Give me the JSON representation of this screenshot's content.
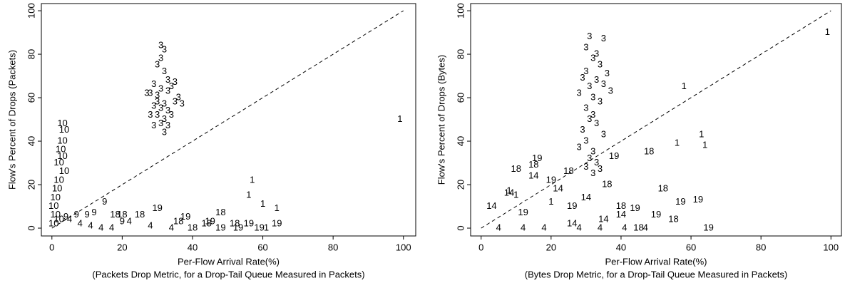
{
  "chart_data": [
    {
      "type": "scatter",
      "xlabel": "Per-Flow Arrival Rate(%)",
      "caption": "(Packets Drop Metric, for a Drop-Tail Queue Measured in Packets)",
      "ylabel": "Flow's Percent of Drops (Packets)",
      "xlim": [
        -3,
        103.5
      ],
      "ylim": [
        -3.6,
        103.3
      ],
      "xticks": [
        0,
        20,
        40,
        60,
        80,
        100
      ],
      "yticks": [
        0,
        20,
        40,
        60,
        80,
        100
      ],
      "diagonal": true,
      "series": [
        {
          "name": "3",
          "color": "#000000",
          "x": [
            31,
            32,
            31,
            30,
            32,
            33,
            29,
            31,
            28,
            30,
            34,
            35,
            33,
            36,
            27,
            30,
            32,
            29,
            31,
            33,
            35,
            37,
            30,
            32,
            34,
            28,
            31,
            33,
            29,
            32
          ],
          "values": [
            84,
            82,
            78,
            75,
            72,
            68,
            66,
            64,
            62,
            61,
            65,
            67,
            63,
            60,
            62,
            58,
            57,
            56,
            55,
            54,
            58,
            57,
            52,
            50,
            52,
            52,
            48,
            47,
            47,
            44
          ]
        },
        {
          "name": "10",
          "color": "#000000",
          "x": [
            3,
            3.5,
            3,
            2.5,
            3,
            2,
            3.5,
            2,
            1.5,
            1,
            0.5,
            1,
            2,
            0.5
          ],
          "values": [
            48,
            45,
            40,
            36,
            33,
            30,
            26,
            22,
            18,
            14,
            10,
            6,
            4,
            2
          ]
        },
        {
          "name": "1",
          "color": "#000000",
          "x": [
            99,
            57,
            56,
            60,
            64,
            61
          ],
          "values": [
            50,
            22,
            15,
            11,
            9,
            0
          ]
        },
        {
          "name": "9",
          "color": "#000000",
          "x": [
            15,
            7,
            10,
            12,
            4,
            20
          ],
          "values": [
            12,
            6,
            6,
            7,
            5,
            3
          ]
        },
        {
          "name": "18",
          "color": "#000000",
          "x": [
            48,
            36,
            20,
            25,
            52,
            18,
            44,
            40
          ],
          "values": [
            7,
            3,
            6,
            6,
            2,
            6,
            2,
            0
          ]
        },
        {
          "name": "19",
          "color": "#000000",
          "x": [
            53,
            59,
            64,
            45,
            38,
            30,
            48,
            56
          ],
          "values": [
            0,
            0,
            2,
            3,
            5,
            9,
            0,
            2
          ]
        },
        {
          "name": "4",
          "color": "#000000",
          "x": [
            8,
            14,
            22,
            28,
            34,
            5,
            11,
            17
          ],
          "values": [
            2,
            0,
            3,
            1,
            0,
            4,
            1,
            0
          ]
        }
      ]
    },
    {
      "type": "scatter",
      "xlabel": "Per-Flow Arrival Rate(%)",
      "caption": "(Bytes Drop Metric, for a Drop-Tail Queue Measured in Packets)",
      "ylabel": "Flow's Percent of Drops (Bytes)",
      "xlim": [
        -3,
        103
      ],
      "ylim": [
        -3.6,
        103.3
      ],
      "xticks": [
        0,
        20,
        40,
        60,
        80,
        100
      ],
      "yticks": [
        0,
        20,
        40,
        60,
        80,
        100
      ],
      "diagonal": true,
      "series": [
        {
          "name": "3",
          "color": "#000000",
          "x": [
            31,
            35,
            30,
            33,
            32,
            34,
            30,
            36,
            29,
            33,
            35,
            31,
            37,
            28,
            32,
            34,
            30,
            32,
            31,
            33,
            29,
            35,
            30,
            28,
            32,
            31,
            33,
            30,
            34,
            32
          ],
          "values": [
            88,
            87,
            83,
            80,
            78,
            75,
            72,
            71,
            69,
            68,
            66,
            65,
            63,
            62,
            60,
            58,
            55,
            52,
            50,
            48,
            45,
            43,
            40,
            37,
            35,
            32,
            30,
            28,
            27,
            25
          ]
        },
        {
          "name": "1",
          "color": "#000000",
          "x": [
            99,
            58,
            63,
            56,
            64,
            10,
            20,
            8
          ],
          "values": [
            90,
            65,
            43,
            39,
            38,
            15,
            12,
            17
          ]
        },
        {
          "name": "18",
          "color": "#000000",
          "x": [
            48,
            52,
            55,
            40,
            15,
            10,
            25,
            45,
            36
          ],
          "values": [
            35,
            18,
            4,
            10,
            29,
            27,
            26,
            0,
            20
          ]
        },
        {
          "name": "19",
          "color": "#000000",
          "x": [
            57,
            62,
            65,
            50,
            16,
            20,
            38,
            44,
            26,
            12
          ],
          "values": [
            12,
            13,
            0,
            6,
            32,
            22,
            33,
            9,
            10,
            7
          ]
        },
        {
          "name": "14",
          "color": "#000000",
          "x": [
            22,
            30,
            35,
            40,
            15,
            8,
            3,
            26
          ],
          "values": [
            18,
            14,
            4,
            6,
            24,
            16,
            10,
            2
          ]
        },
        {
          "name": "4",
          "color": "#000000",
          "x": [
            5,
            12,
            18,
            28,
            34,
            41,
            47
          ],
          "values": [
            0,
            0,
            0,
            0,
            0,
            0,
            0
          ]
        }
      ]
    }
  ]
}
